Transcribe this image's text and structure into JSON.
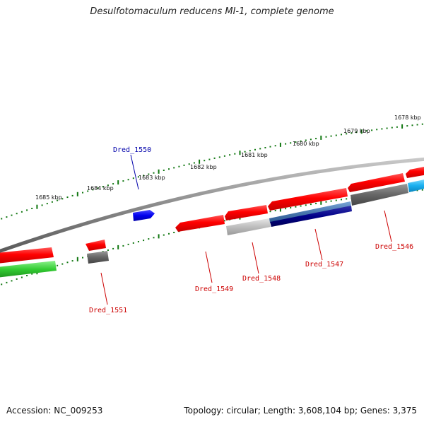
{
  "title": "Desulfotomaculum reducens MI-1, complete genome",
  "footer": {
    "accession": "Accession: NC_009253",
    "summary": "Topology: circular; Length: 3,608,104 bp; Genes: 3,375"
  },
  "colors": {
    "forward_gene": "#ff0000",
    "reverse_gene": "#ff0000",
    "highlight_gene": "#0000ee",
    "label_forward": "#0000aa",
    "label_reverse": "#cc0000",
    "tick": "#117711",
    "backbone": "#888888"
  },
  "ruler_labels": [
    "1685 kbp",
    "1684 kbp",
    "1683 kbp",
    "1682 kbp",
    "1681 kbp",
    "1680 kbp",
    "1679 kbp",
    "1678 kbp"
  ],
  "gene_labels": [
    {
      "name": "Dred_1550",
      "strand": "forward"
    },
    {
      "name": "Dred_1551",
      "strand": "reverse"
    },
    {
      "name": "Dred_1549",
      "strand": "reverse"
    },
    {
      "name": "Dred_1548",
      "strand": "reverse"
    },
    {
      "name": "Dred_1547",
      "strand": "reverse"
    },
    {
      "name": "Dred_1546",
      "strand": "reverse"
    }
  ]
}
